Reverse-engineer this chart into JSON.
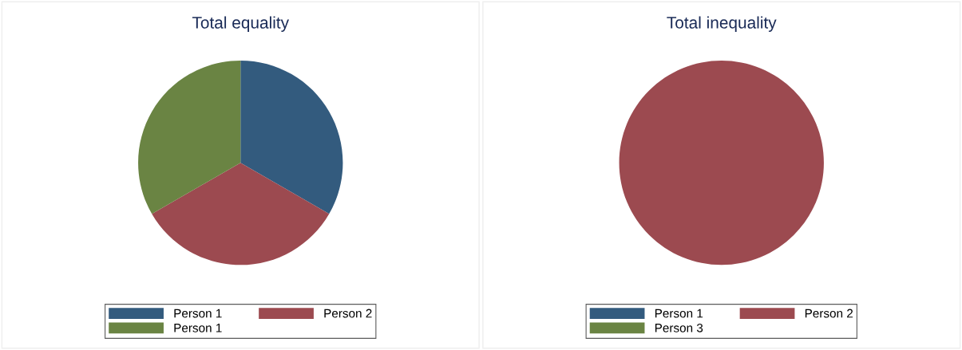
{
  "chart_data": [
    {
      "type": "pie",
      "title": "Total equality",
      "categories": [
        "Person 1",
        "Person 2",
        "Person 1"
      ],
      "values": [
        33.33,
        33.33,
        33.33
      ],
      "colors": [
        "#335b7e",
        "#9c4a50",
        "#6a8443"
      ],
      "legend": "bottom"
    },
    {
      "type": "pie",
      "title": "Total inequality",
      "categories": [
        "Person 1",
        "Person 2",
        "Person 3"
      ],
      "values": [
        0,
        100,
        0
      ],
      "colors": [
        "#335b7e",
        "#9c4a50",
        "#6a8443"
      ],
      "legend": "bottom"
    }
  ]
}
